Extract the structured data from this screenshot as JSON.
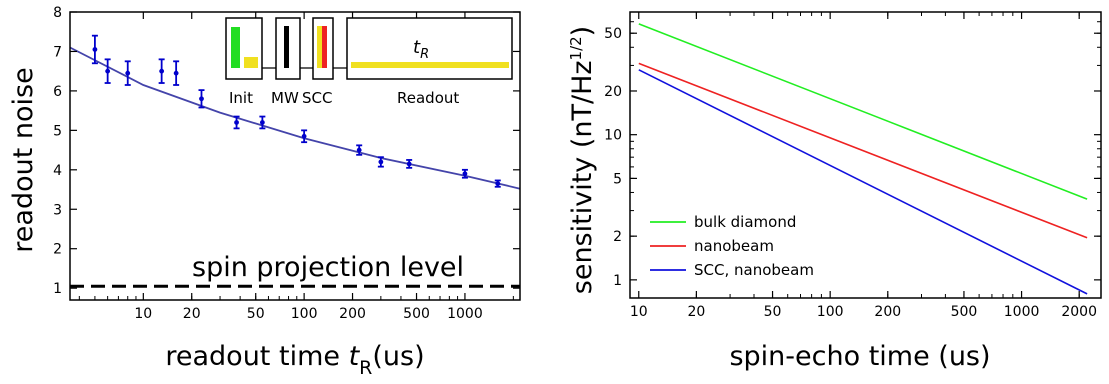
{
  "chart_data": [
    {
      "type": "scatter",
      "title": "",
      "xlabel_prefix": "readout time ",
      "xlabel_var": "t",
      "xlabel_sub": "R",
      "xlabel_suffix": "(us)",
      "ylabel": "readout noise",
      "x_scale": "log",
      "xlim": [
        3.5,
        2200
      ],
      "ylim": [
        0.7,
        8
      ],
      "x_ticks": [
        10,
        20,
        50,
        100,
        200,
        500,
        1000
      ],
      "y_ticks": [
        1,
        2,
        3,
        4,
        5,
        6,
        7,
        8
      ],
      "series": [
        {
          "name": "",
          "color": "#0000cc",
          "points": [
            {
              "x": 5,
              "y": 7.05,
              "err": 0.35
            },
            {
              "x": 6,
              "y": 6.5,
              "err": 0.3
            },
            {
              "x": 8,
              "y": 6.45,
              "err": 0.3
            },
            {
              "x": 13,
              "y": 6.5,
              "err": 0.3
            },
            {
              "x": 16,
              "y": 6.45,
              "err": 0.3
            },
            {
              "x": 23,
              "y": 5.8,
              "err": 0.22
            },
            {
              "x": 38,
              "y": 5.2,
              "err": 0.15
            },
            {
              "x": 55,
              "y": 5.2,
              "err": 0.15
            },
            {
              "x": 100,
              "y": 4.85,
              "err": 0.15
            },
            {
              "x": 220,
              "y": 4.5,
              "err": 0.12
            },
            {
              "x": 300,
              "y": 4.2,
              "err": 0.12
            },
            {
              "x": 450,
              "y": 4.15,
              "err": 0.1
            },
            {
              "x": 1000,
              "y": 3.9,
              "err": 0.1
            },
            {
              "x": 1600,
              "y": 3.65,
              "err": 0.08
            }
          ]
        }
      ],
      "fit_line": {
        "color": "#4444aa",
        "points": [
          [
            3.5,
            7.1
          ],
          [
            10,
            6.15
          ],
          [
            30,
            5.45
          ],
          [
            100,
            4.8
          ],
          [
            300,
            4.3
          ],
          [
            1000,
            3.85
          ],
          [
            2200,
            3.52
          ]
        ]
      },
      "reference_line": {
        "y": 1.05,
        "style": "dashed",
        "color": "#000000"
      },
      "annotations": [
        {
          "text": "spin projection level"
        }
      ],
      "inset": {
        "boxes": [
          "Init",
          "MW",
          "SCC",
          "Readout"
        ],
        "readout_var": "t",
        "readout_sub": "R",
        "colors": {
          "green": "#22dd22",
          "yellow": "#f0e020",
          "black": "#000000",
          "red": "#ee2222"
        }
      }
    },
    {
      "type": "line",
      "title": "",
      "xlabel": "spin-echo time (us)",
      "ylabel_prefix": "sensitivity (nT/Hz",
      "ylabel_sup": "1/2",
      "ylabel_suffix": ")",
      "x_scale": "log",
      "y_scale": "log",
      "xlim": [
        9,
        2600
      ],
      "ylim": [
        0.75,
        70
      ],
      "x_ticks": [
        10,
        20,
        50,
        100,
        200,
        500,
        1000,
        2000
      ],
      "y_ticks": [
        1,
        2,
        5,
        10,
        20,
        50
      ],
      "legend_position": "bottom-left",
      "series": [
        {
          "name": "bulk diamond",
          "color": "#22ee22",
          "points": [
            [
              10,
              58
            ],
            [
              2200,
              3.6
            ]
          ]
        },
        {
          "name": "nanobeam",
          "color": "#ee2222",
          "points": [
            [
              10,
              31
            ],
            [
              2200,
              1.95
            ]
          ]
        },
        {
          "name": "SCC, nanobeam",
          "color": "#1111dd",
          "points": [
            [
              10,
              28
            ],
            [
              2200,
              0.8
            ]
          ]
        }
      ]
    }
  ]
}
